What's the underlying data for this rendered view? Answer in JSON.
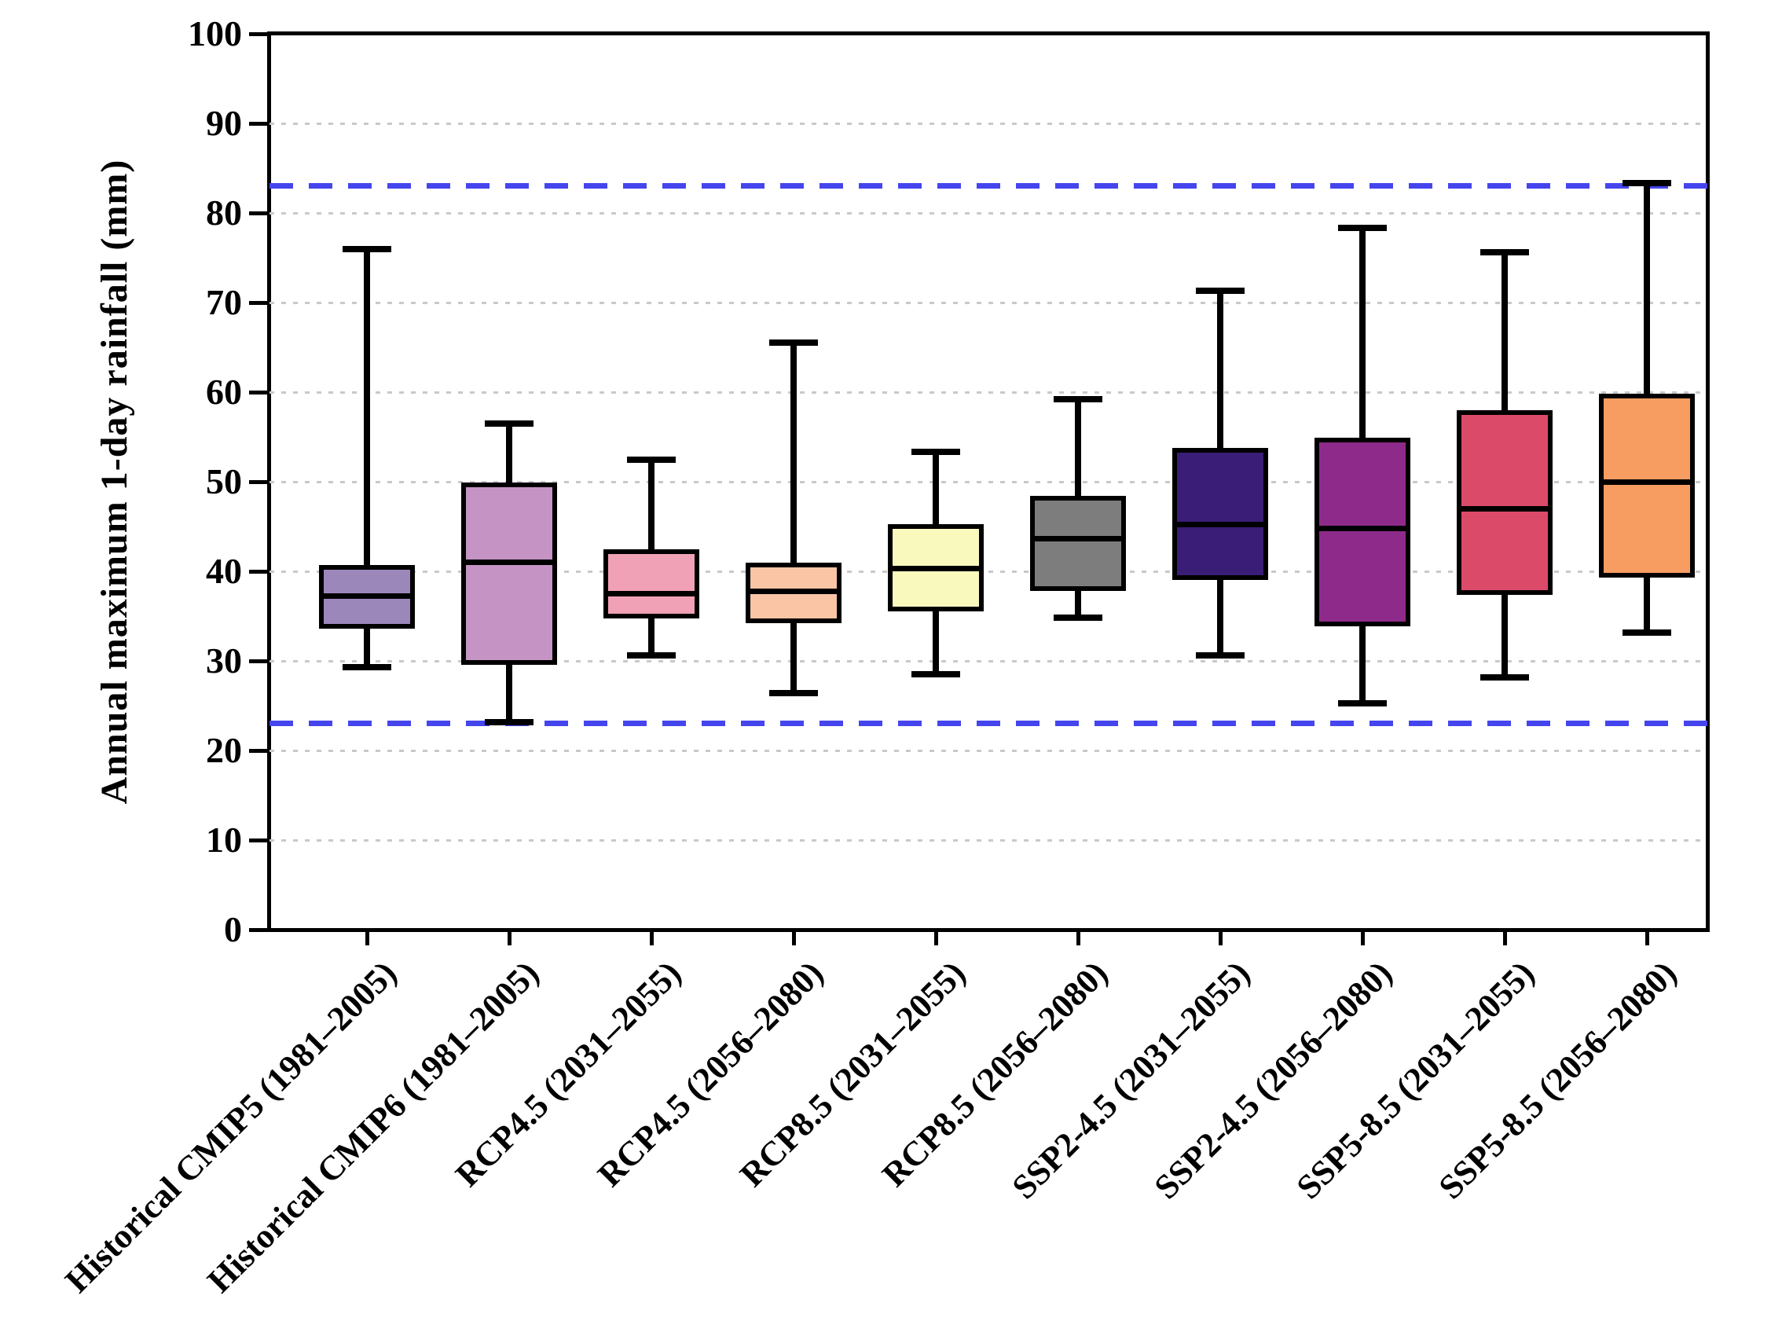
{
  "chart_data": {
    "type": "boxplot",
    "title": "",
    "ylabel": "Annual maximum 1-day rainfall (mm)",
    "xlabel": "",
    "ylim": [
      0,
      100
    ],
    "yticks": [
      "0",
      "10",
      "20",
      "30",
      "40",
      "50",
      "60",
      "70",
      "80",
      "90",
      "100"
    ],
    "grid": {
      "horizontal": true,
      "style": "dotted",
      "interval": 10,
      "color": "#c9c9c9"
    },
    "legend": "none",
    "reference_lines": [
      {
        "name": "upper-threshold",
        "value": 83,
        "style": "dashed",
        "color": "#4545ee"
      },
      {
        "name": "lower-threshold",
        "value": 23,
        "style": "dashed",
        "color": "#4545ee"
      }
    ],
    "series": [
      {
        "label": "Historical CMIP5 (1981–2005)",
        "color": "#9c87ba",
        "whisker_low": 29.3,
        "q1": 33.6,
        "median": 37.2,
        "q3": 40.7,
        "whisker_high": 76.0
      },
      {
        "label": "Historical CMIP6 (1981–2005)",
        "color": "#c594c4",
        "whisker_low": 23.2,
        "q1": 29.6,
        "median": 41.0,
        "q3": 49.9,
        "whisker_high": 56.5
      },
      {
        "label": "RCP4.5 (2031–2055)",
        "color": "#f1a1b5",
        "whisker_low": 30.6,
        "q1": 34.7,
        "median": 37.5,
        "q3": 42.5,
        "whisker_high": 52.5
      },
      {
        "label": "RCP4.5 (2056–2080)",
        "color": "#f9c5a5",
        "whisker_low": 26.4,
        "q1": 34.2,
        "median": 37.8,
        "q3": 41.0,
        "whisker_high": 65.5
      },
      {
        "label": "RCP8.5 (2031–2055)",
        "color": "#f9f9be",
        "whisker_low": 28.5,
        "q1": 35.5,
        "median": 40.3,
        "q3": 45.3,
        "whisker_high": 53.3
      },
      {
        "label": "RCP8.5 (2056–2080)",
        "color": "#7d7d7d",
        "whisker_low": 34.8,
        "q1": 37.8,
        "median": 43.6,
        "q3": 48.4,
        "whisker_high": 59.2
      },
      {
        "label": "SSP2-4.5 (2031–2055)",
        "color": "#3a1d76",
        "whisker_low": 30.6,
        "q1": 39.0,
        "median": 45.2,
        "q3": 53.8,
        "whisker_high": 71.3
      },
      {
        "label": "SSP2-4.5 (2056–2080)",
        "color": "#8e2b8a",
        "whisker_low": 25.3,
        "q1": 33.9,
        "median": 44.8,
        "q3": 54.9,
        "whisker_high": 78.3
      },
      {
        "label": "SSP5-8.5 (2031–2055)",
        "color": "#dc4a6a",
        "whisker_low": 28.2,
        "q1": 37.4,
        "median": 47.0,
        "q3": 58.0,
        "whisker_high": 75.6
      },
      {
        "label": "SSP5-8.5 (2056–2080)",
        "color": "#f89d62",
        "whisker_low": 33.2,
        "q1": 39.3,
        "median": 50.0,
        "q3": 59.8,
        "whisker_high": 83.3
      }
    ]
  }
}
